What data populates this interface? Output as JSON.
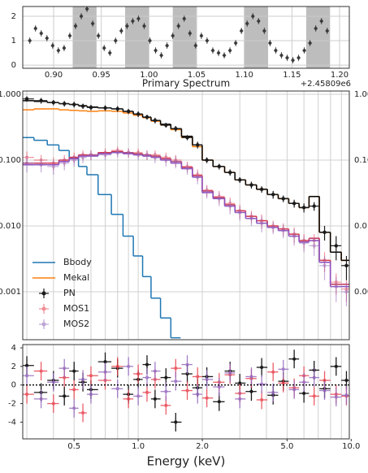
{
  "chart_data": [
    {
      "type": "scatter",
      "xlabel": "Primary Spectrum",
      "offset_text": "+2.45809e6",
      "color": "#3a3a3a",
      "band_color": "#bdbdbd",
      "bands": [
        [
          0.92,
          0.945
        ],
        [
          0.975,
          1.0
        ],
        [
          1.025,
          1.05
        ],
        [
          1.1,
          1.125
        ],
        [
          1.165,
          1.19
        ]
      ],
      "x": [
        0.875,
        0.881,
        0.887,
        0.893,
        0.899,
        0.905,
        0.911,
        0.917,
        0.923,
        0.929,
        0.935,
        0.941,
        0.947,
        0.953,
        0.959,
        0.965,
        0.971,
        0.977,
        0.983,
        0.989,
        0.995,
        1.001,
        1.007,
        1.013,
        1.019,
        1.025,
        1.031,
        1.037,
        1.043,
        1.049,
        1.055,
        1.061,
        1.067,
        1.073,
        1.079,
        1.085,
        1.091,
        1.097,
        1.103,
        1.109,
        1.115,
        1.121,
        1.127,
        1.133,
        1.139,
        1.145,
        1.151,
        1.157,
        1.163,
        1.169,
        1.175,
        1.181,
        1.187
      ],
      "values": [
        1.0,
        1.5,
        1.3,
        1.1,
        0.8,
        0.6,
        0.7,
        1.2,
        1.6,
        2.0,
        2.3,
        1.7,
        1.2,
        0.7,
        0.5,
        1.0,
        1.4,
        1.6,
        1.8,
        1.9,
        1.6,
        1.0,
        0.6,
        0.4,
        0.8,
        1.2,
        1.6,
        1.9,
        1.3,
        0.8,
        1.2,
        1.0,
        0.6,
        0.5,
        0.4,
        0.6,
        0.9,
        1.4,
        1.7,
        2.0,
        1.8,
        1.4,
        0.9,
        0.6,
        0.4,
        0.3,
        0.2,
        0.3,
        0.6,
        0.9,
        1.5,
        1.8,
        1.4
      ],
      "xlim": [
        0.8676,
        1.2102
      ],
      "ylim": [
        -0.13,
        2.4
      ],
      "xticks": [
        {
          "value": 0.9,
          "label": "0.90"
        },
        0.95,
        {
          "value": 1.0,
          "label": "1.00"
        },
        1.05,
        {
          "value": 1.1,
          "label": "1.10"
        },
        1.15,
        {
          "value": 1.2,
          "label": "1.20"
        }
      ],
      "yticks": [
        0,
        1,
        2
      ],
      "grid": true
    },
    {
      "type": "errorbar",
      "xlabel": "Energy (keV)",
      "xscale": "log",
      "yscale": "log",
      "xlim": [
        0.287,
        9.8
      ],
      "ylim": [
        0.000187,
        1.12
      ],
      "xticks": [
        0.5,
        {
          "value": 1,
          "label": "1.0"
        },
        {
          "value": 2,
          "label": "2.0"
        },
        {
          "value": 5,
          "label": "5.0"
        },
        {
          "value": 10,
          "label": "10.0"
        }
      ],
      "xminor": [
        0.3,
        0.4,
        0.5,
        0.6,
        0.7,
        0.8,
        0.9,
        1,
        2,
        3,
        4,
        5,
        6,
        7,
        8,
        9
      ],
      "yticks": [
        {
          "value": 1,
          "label": "1.000"
        },
        {
          "value": 0.1,
          "label": "0.100"
        },
        {
          "value": 0.01,
          "label": "0.010"
        },
        {
          "value": 0.001,
          "label": "0.001"
        }
      ],
      "grid": true,
      "legend": "lower left",
      "x": [
        0.3,
        0.35,
        0.4,
        0.45,
        0.5,
        0.55,
        0.6,
        0.7,
        0.8,
        0.9,
        1.0,
        1.1,
        1.2,
        1.35,
        1.5,
        1.7,
        1.9,
        2.1,
        2.4,
        2.7,
        3.0,
        3.4,
        3.8,
        4.3,
        4.8,
        5.4,
        6.0,
        6.7,
        7.5,
        8.5,
        9.5
      ],
      "models": [
        {
          "name": "Bbody",
          "color": "#1f77b4",
          "x": [
            0.3,
            0.35,
            0.4,
            0.45,
            0.5,
            0.55,
            0.6,
            0.7,
            0.8,
            0.9,
            1.0,
            1.1,
            1.2,
            1.35,
            1.5
          ],
          "values": [
            0.22,
            0.2,
            0.17,
            0.14,
            0.11,
            0.08,
            0.06,
            0.03,
            0.015,
            0.007,
            0.0035,
            0.0017,
            0.0008,
            0.0004,
            0.0002
          ]
        },
        {
          "name": "Mekal",
          "color": "#ff7f0e",
          "values": [
            0.58,
            0.6,
            0.6,
            0.58,
            0.57,
            0.56,
            0.55,
            0.56,
            0.55,
            0.52,
            0.48,
            0.44,
            0.39,
            0.34,
            0.29,
            0.22,
            0.16,
            0.1,
            0.08,
            0.065,
            0.05,
            0.042,
            0.036,
            0.03,
            0.026,
            0.022,
            0.019,
            0.028,
            0.008,
            0.004,
            0.003
          ]
        }
      ],
      "series": [
        {
          "name": "PN",
          "color": "#1a1a1a",
          "model_color": "#000000",
          "values": [
            0.85,
            0.8,
            0.75,
            0.72,
            0.7,
            0.66,
            0.63,
            0.62,
            0.6,
            0.55,
            0.5,
            0.45,
            0.4,
            0.34,
            0.3,
            0.22,
            0.17,
            0.1,
            0.08,
            0.065,
            0.05,
            0.042,
            0.036,
            0.03,
            0.026,
            0.022,
            0.019,
            0.02,
            0.008,
            0.005,
            0.0025
          ],
          "errors": [
            0.08,
            0.08,
            0.07,
            0.07,
            0.07,
            0.06,
            0.06,
            0.06,
            0.06,
            0.05,
            0.05,
            0.04,
            0.04,
            0.03,
            0.03,
            0.02,
            0.02,
            0.01,
            0.008,
            0.007,
            0.005,
            0.005,
            0.004,
            0.004,
            0.003,
            0.003,
            0.003,
            0.003,
            0.002,
            0.002,
            0.001
          ],
          "model": [
            0.8,
            0.78,
            0.75,
            0.72,
            0.7,
            0.67,
            0.64,
            0.62,
            0.6,
            0.55,
            0.5,
            0.45,
            0.4,
            0.35,
            0.3,
            0.23,
            0.17,
            0.1,
            0.08,
            0.065,
            0.05,
            0.042,
            0.036,
            0.03,
            0.026,
            0.022,
            0.019,
            0.028,
            0.008,
            0.004,
            0.003
          ],
          "residuals": [
            2.1,
            -0.8,
            0.5,
            -1.2,
            1.5,
            0.3,
            -0.5,
            2.5,
            1.8,
            -1.0,
            0.6,
            2.2,
            -1.5,
            0.8,
            -4.0,
            1.2,
            -0.3,
            0.9,
            -1.8,
            1.5,
            0.2,
            -0.7,
            1.9,
            -1.1,
            0.4,
            2.8,
            -0.9,
            1.6,
            -0.4,
            2.0,
            0.5
          ],
          "residual_error": 1
        },
        {
          "name": "MOS1",
          "color": "#e8414e",
          "model_color": "#c0365a",
          "values": [
            0.11,
            0.1,
            0.09,
            0.1,
            0.11,
            0.12,
            0.12,
            0.13,
            0.14,
            0.13,
            0.13,
            0.12,
            0.12,
            0.11,
            0.1,
            0.08,
            0.06,
            0.035,
            0.028,
            0.022,
            0.017,
            0.014,
            0.012,
            0.01,
            0.009,
            0.0075,
            0.006,
            0.006,
            0.003,
            0.0014,
            0.0011
          ],
          "errors": [
            0.025,
            0.02,
            0.02,
            0.02,
            0.02,
            0.02,
            0.02,
            0.02,
            0.02,
            0.02,
            0.02,
            0.02,
            0.02,
            0.02,
            0.02,
            0.015,
            0.012,
            0.007,
            0.006,
            0.005,
            0.004,
            0.003,
            0.003,
            0.002,
            0.002,
            0.002,
            0.0015,
            0.0015,
            0.001,
            0.0005,
            0.0004
          ],
          "model": [
            0.09,
            0.09,
            0.09,
            0.1,
            0.11,
            0.12,
            0.12,
            0.13,
            0.135,
            0.13,
            0.125,
            0.12,
            0.115,
            0.105,
            0.095,
            0.078,
            0.058,
            0.034,
            0.027,
            0.021,
            0.017,
            0.014,
            0.012,
            0.01,
            0.009,
            0.0075,
            0.006,
            0.0065,
            0.003,
            0.0013,
            0.0013
          ],
          "residuals": [
            -1.0,
            1.5,
            -2.0,
            0.8,
            -0.5,
            -3.0,
            1.0,
            0.5,
            2.0,
            -1.5,
            1.2,
            -0.8,
            0.6,
            -2.2,
            1.8,
            -0.6,
            0.9,
            -1.4,
            0.3,
            1.1,
            -0.9,
            0.7,
            -1.6,
            1.4,
            0.2,
            -0.3,
            1.0,
            -1.2,
            0.5,
            -1.0,
            -1.2
          ],
          "residual_error": 1
        },
        {
          "name": "MOS2",
          "color": "#9467bd",
          "model_color": "#8a4fc0",
          "values": [
            0.09,
            0.085,
            0.08,
            0.09,
            0.1,
            0.11,
            0.12,
            0.12,
            0.13,
            0.13,
            0.12,
            0.12,
            0.11,
            0.1,
            0.095,
            0.075,
            0.055,
            0.033,
            0.026,
            0.02,
            0.016,
            0.013,
            0.011,
            0.0095,
            0.0085,
            0.007,
            0.0055,
            0.005,
            0.0025,
            0.0012,
            0.001
          ],
          "errors": [
            0.025,
            0.02,
            0.02,
            0.02,
            0.02,
            0.02,
            0.02,
            0.02,
            0.02,
            0.02,
            0.02,
            0.02,
            0.02,
            0.02,
            0.02,
            0.015,
            0.012,
            0.007,
            0.006,
            0.005,
            0.004,
            0.003,
            0.003,
            0.002,
            0.002,
            0.002,
            0.0015,
            0.0015,
            0.001,
            0.0005,
            0.0004
          ],
          "model": [
            0.085,
            0.085,
            0.085,
            0.095,
            0.105,
            0.115,
            0.115,
            0.125,
            0.13,
            0.125,
            0.12,
            0.115,
            0.11,
            0.1,
            0.09,
            0.074,
            0.055,
            0.032,
            0.026,
            0.02,
            0.016,
            0.013,
            0.011,
            0.0095,
            0.0085,
            0.007,
            0.0057,
            0.006,
            0.0028,
            0.0012,
            0.0012
          ],
          "residuals": [
            1.0,
            -1.5,
            0.3,
            1.8,
            -2.5,
            0.6,
            -1.0,
            1.4,
            -0.4,
            2.0,
            -1.2,
            0.8,
            1.5,
            -0.7,
            0.4,
            2.2,
            -1.0,
            0.6,
            -0.2,
            1.3,
            -1.5,
            0.9,
            0.1,
            -0.8,
            1.7,
            -0.5,
            0.3,
            0.8,
            -0.6,
            -1.3,
            -1.1
          ],
          "residual_error": 1
        }
      ],
      "residual_ylim": [
        -5.8,
        4.35
      ],
      "residual_yticks": [
        4,
        2,
        0,
        -2,
        -4
      ]
    }
  ]
}
